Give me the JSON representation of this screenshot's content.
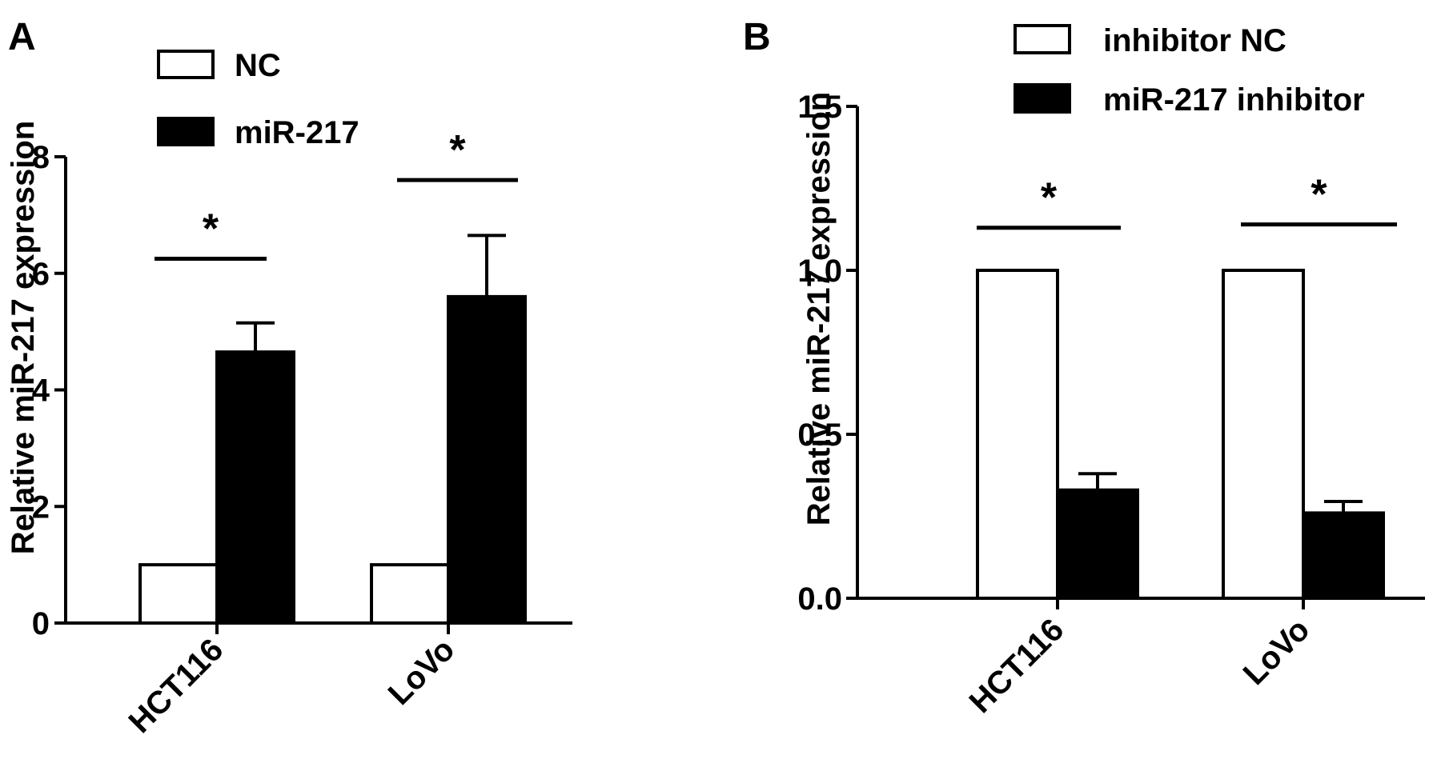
{
  "chart_data": [
    {
      "panel_label": "A",
      "type": "bar",
      "categories": [
        "HCT116",
        "LoVo"
      ],
      "series": [
        {
          "name": "NC",
          "values": [
            1.0,
            1.0
          ],
          "errors": [
            0,
            0
          ],
          "fill": "#ffffff"
        },
        {
          "name": "miR-217",
          "values": [
            4.65,
            5.6
          ],
          "errors": [
            0.5,
            1.05
          ],
          "fill": "#000000"
        }
      ],
      "ylabel": "Relative miR-217 expression",
      "xlabel": "",
      "ylim": [
        0,
        8
      ],
      "yticks": [
        "0",
        "2",
        "4",
        "6",
        "8"
      ],
      "significance": [
        {
          "category": "HCT116",
          "symbol": "*",
          "level": 6.25
        },
        {
          "category": "LoVo",
          "symbol": "*",
          "level": 7.6
        }
      ],
      "legend_position": "top-left"
    },
    {
      "panel_label": "B",
      "type": "bar",
      "categories": [
        "HCT116",
        "LoVo"
      ],
      "series": [
        {
          "name": "inhibitor NC",
          "values": [
            1.0,
            1.0
          ],
          "errors": [
            0,
            0
          ],
          "fill": "#ffffff"
        },
        {
          "name": "miR-217 inhibitor",
          "values": [
            0.33,
            0.26
          ],
          "errors": [
            0.05,
            0.035
          ],
          "fill": "#000000"
        }
      ],
      "ylabel": "Relative miR-217 expression",
      "xlabel": "",
      "ylim": [
        0,
        1.5
      ],
      "yticks": [
        "0.0",
        "0.5",
        "1.0",
        "1.5"
      ],
      "significance": [
        {
          "category": "HCT116",
          "symbol": "*",
          "level": 1.13
        },
        {
          "category": "LoVo",
          "symbol": "*",
          "level": 1.14
        }
      ],
      "legend_position": "top-right"
    }
  ]
}
